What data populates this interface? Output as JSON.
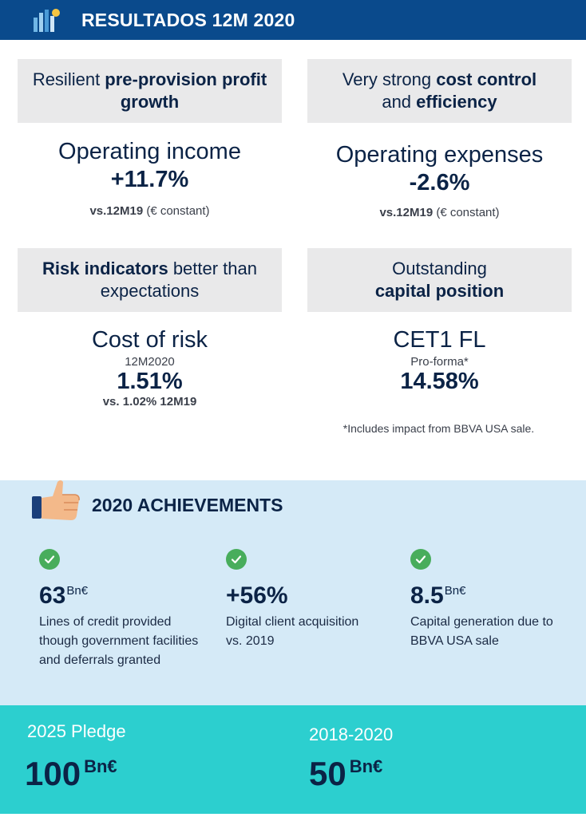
{
  "header": {
    "title": "RESULTADOS 12M 2020"
  },
  "cards": [
    {
      "label_light": "Resilient ",
      "label_bold": "pre-provision profit growth",
      "metric": "Operating income",
      "value": "+11.7%",
      "note_bold": "vs.12M19",
      "note_rest": " (€ constant)"
    },
    {
      "label_light_1": "Very strong ",
      "label_bold_1": "cost control",
      "label_light_2": "and ",
      "label_bold_2": "efficiency",
      "metric": "Operating expenses",
      "value": "-2.6%",
      "note_bold": "vs.12M19",
      "note_rest": " (€ constant)"
    },
    {
      "label_bold": "Risk indicators",
      "label_light": " better than expectations",
      "metric": "Cost of risk",
      "sub": "12M2020",
      "value": "1.51%",
      "note": "vs. 1.02% 12M19"
    },
    {
      "label_light": "Outstanding",
      "label_bold": "capital position",
      "metric": "CET1 FL",
      "sub": "Pro-forma*",
      "value": "14.58%"
    }
  ],
  "footnote": "*Includes impact from BBVA USA sale.",
  "achievements": {
    "title": "2020 ACHIEVEMENTS",
    "items": [
      {
        "value": "63",
        "unit": "Bn€",
        "desc": "Lines of credit provided though government facilities and deferrals granted"
      },
      {
        "value": "+56%",
        "unit": "",
        "desc": "Digital client acquisition vs. 2019"
      },
      {
        "value": "8.5",
        "unit": "Bn€",
        "desc": "Capital generation due to BBVA USA sale"
      }
    ]
  },
  "pledge": {
    "items": [
      {
        "label": "2025 Pledge",
        "value": "100",
        "unit": "Bn€"
      },
      {
        "label": "2018-2020",
        "value": "50",
        "unit": "Bn€"
      }
    ]
  },
  "colors": {
    "header": "#0a4a8c",
    "achievements_bg": "#d5eaf7",
    "pledge_bg": "#2ccfcf",
    "check": "#48ad5c",
    "text": "#0b2346"
  }
}
